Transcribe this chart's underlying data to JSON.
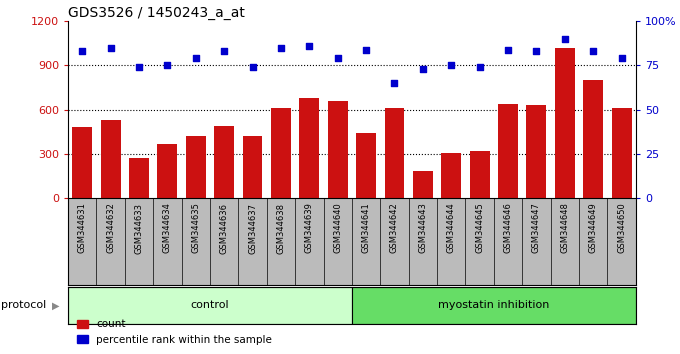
{
  "title": "GDS3526 / 1450243_a_at",
  "samples": [
    "GSM344631",
    "GSM344632",
    "GSM344633",
    "GSM344634",
    "GSM344635",
    "GSM344636",
    "GSM344637",
    "GSM344638",
    "GSM344639",
    "GSM344640",
    "GSM344641",
    "GSM344642",
    "GSM344643",
    "GSM344644",
    "GSM344645",
    "GSM344646",
    "GSM344647",
    "GSM344648",
    "GSM344649",
    "GSM344650"
  ],
  "counts": [
    480,
    530,
    270,
    370,
    420,
    490,
    420,
    615,
    680,
    660,
    440,
    615,
    185,
    305,
    320,
    640,
    635,
    1020,
    800,
    615
  ],
  "percentiles": [
    83,
    85,
    74,
    75,
    79,
    83,
    74,
    85,
    86,
    79,
    84,
    65,
    73,
    75,
    74,
    84,
    83,
    90,
    83,
    79
  ],
  "bar_color": "#cc1111",
  "dot_color": "#0000cc",
  "left_ylim": [
    0,
    1200
  ],
  "right_ylim": [
    0,
    100
  ],
  "left_yticks": [
    0,
    300,
    600,
    900,
    1200
  ],
  "right_yticks": [
    0,
    25,
    50,
    75,
    100
  ],
  "gridlines": [
    300,
    600,
    900
  ],
  "control_count": 10,
  "myostatin_count": 10,
  "control_label": "control",
  "myostatin_label": "myostatin inhibition",
  "protocol_label": "protocol",
  "legend_count_label": "count",
  "legend_percentile_label": "percentile rank within the sample",
  "control_color": "#ccffcc",
  "myostatin_color": "#66dd66",
  "xlabel_area_color": "#bbbbbb",
  "title_fontsize": 10,
  "bar_width": 0.7
}
